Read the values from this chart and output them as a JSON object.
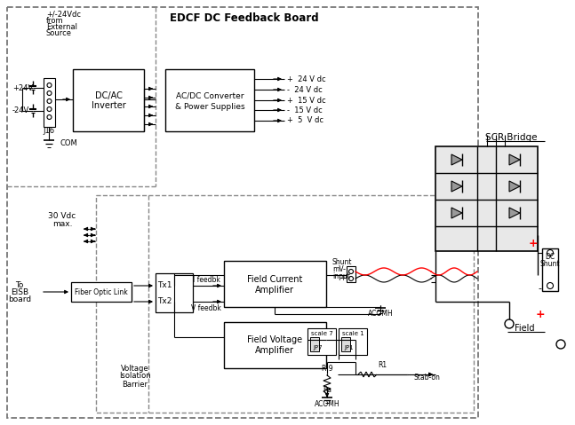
{
  "title": "EDCF DC Feedback Board",
  "bg_color": "#ffffff",
  "outputs": [
    "+  24 V dc",
    "-  24 V dc",
    "+  15 V dc",
    "-  15 V dc",
    "+  5  V dc"
  ]
}
